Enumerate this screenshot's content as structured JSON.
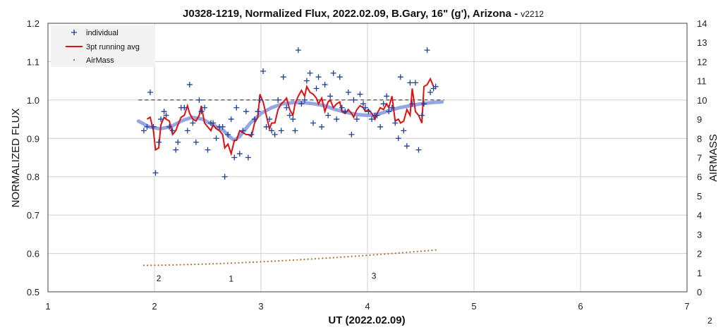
{
  "chart_data": {
    "type": "scatter",
    "title": "J0328-1219, Normalized Flux, 2022.02.09, B.Gary, 16\" (g'), Arizona - ",
    "title_version": "v2212",
    "xlabel": "UT (2022.02.09)",
    "ylabel": "NORMALIZED FLUX",
    "y2label": "AIRMASS",
    "xlim": [
      1,
      7
    ],
    "ylim": [
      0.5,
      1.2
    ],
    "y2lim": [
      0,
      14
    ],
    "x_ticks": [
      "1",
      "2",
      "3",
      "4",
      "5",
      "6",
      "7"
    ],
    "y_ticks": [
      "0.5",
      "0.6",
      "0.7",
      "0.8",
      "0.9",
      "1.0",
      "1.1",
      "1.2"
    ],
    "y2_ticks": [
      "0",
      "1",
      "2",
      "3",
      "4",
      "5",
      "6",
      "7",
      "8",
      "9",
      "10",
      "11",
      "12",
      "13",
      "14"
    ],
    "grid": true,
    "legend_position": "top-left",
    "reference_level": 1.0,
    "annotations": [
      {
        "text": "2",
        "x": 2.04,
        "y": 0.528
      },
      {
        "text": "1",
        "x": 2.72,
        "y": 0.527
      },
      {
        "text": "3",
        "x": 4.06,
        "y": 0.534
      }
    ],
    "corner_note": "2",
    "series": [
      {
        "name": "individual",
        "color": "#1f3f99",
        "marker": "plus",
        "x": [
          1.9,
          1.93,
          1.96,
          1.99,
          2.01,
          2.04,
          2.06,
          2.09,
          2.11,
          2.14,
          2.17,
          2.2,
          2.22,
          2.25,
          2.28,
          2.31,
          2.33,
          2.36,
          2.39,
          2.42,
          2.44,
          2.47,
          2.5,
          2.53,
          2.55,
          2.58,
          2.61,
          2.64,
          2.66,
          2.69,
          2.72,
          2.75,
          2.77,
          2.8,
          2.83,
          2.86,
          2.88,
          2.91,
          2.94,
          2.97,
          2.99,
          3.02,
          3.05,
          3.08,
          3.1,
          3.13,
          3.16,
          3.19,
          3.21,
          3.24,
          3.27,
          3.3,
          3.32,
          3.35,
          3.38,
          3.41,
          3.43,
          3.46,
          3.49,
          3.52,
          3.54,
          3.57,
          3.6,
          3.63,
          3.65,
          3.68,
          3.71,
          3.74,
          3.76,
          3.79,
          3.82,
          3.85,
          3.87,
          3.9,
          3.93,
          3.96,
          3.98,
          4.01,
          4.04,
          4.07,
          4.09,
          4.12,
          4.15,
          4.18,
          4.2,
          4.23,
          4.26,
          4.29,
          4.31,
          4.34,
          4.37,
          4.4,
          4.42,
          4.45,
          4.48,
          4.51,
          4.53,
          4.56,
          4.59,
          4.62,
          4.64
        ],
        "y": [
          0.92,
          0.93,
          1.02,
          0.93,
          0.81,
          0.89,
          0.95,
          0.97,
          0.96,
          0.93,
          0.92,
          0.87,
          0.89,
          0.98,
          0.98,
          0.92,
          1.04,
          0.94,
          0.89,
          1.0,
          0.97,
          0.98,
          0.87,
          0.94,
          0.94,
          0.9,
          0.93,
          0.93,
          0.8,
          0.91,
          0.95,
          0.85,
          0.98,
          0.86,
          0.92,
          0.97,
          0.85,
          0.91,
          0.95,
          0.97,
          1.0,
          1.075,
          0.93,
          0.95,
          0.92,
          0.91,
          1.0,
          0.92,
          1.06,
          0.98,
          0.96,
          0.95,
          0.92,
          1.13,
          0.99,
          1.0,
          1.05,
          1.07,
          0.94,
          1.03,
          1.06,
          0.93,
          1.04,
          0.96,
          1.01,
          1.07,
          0.95,
          1.06,
          0.98,
          0.97,
          1.02,
          0.91,
          1.0,
          0.95,
          1.015,
          0.99,
          0.98,
          0.97,
          0.95,
          0.96,
          0.96,
          0.93,
          0.99,
          1.01,
          0.97,
          0.98,
          0.94,
          0.9,
          1.06,
          0.92,
          0.88,
          1.045,
          0.99,
          1.045,
          0.87,
          0.96,
          0.99,
          1.13,
          1.02,
          1.03,
          1.035
        ]
      },
      {
        "name": "3pt running avg",
        "color": "#dd1111",
        "x": [
          1.93,
          1.96,
          1.99,
          2.01,
          2.04,
          2.06,
          2.09,
          2.11,
          2.14,
          2.17,
          2.2,
          2.22,
          2.25,
          2.28,
          2.31,
          2.33,
          2.36,
          2.39,
          2.42,
          2.44,
          2.47,
          2.5,
          2.53,
          2.55,
          2.58,
          2.61,
          2.64,
          2.66,
          2.69,
          2.72,
          2.75,
          2.77,
          2.8,
          2.83,
          2.86,
          2.88,
          2.91,
          2.94,
          2.97,
          2.99,
          3.02,
          3.05,
          3.08,
          3.1,
          3.13,
          3.16,
          3.19,
          3.21,
          3.24,
          3.27,
          3.3,
          3.32,
          3.35,
          3.38,
          3.41,
          3.43,
          3.46,
          3.49,
          3.52,
          3.54,
          3.57,
          3.6,
          3.63,
          3.65,
          3.68,
          3.71,
          3.74,
          3.76,
          3.79,
          3.82,
          3.85,
          3.87,
          3.9,
          3.93,
          3.96,
          3.98,
          4.01,
          4.04,
          4.07,
          4.09,
          4.12,
          4.15,
          4.18,
          4.2,
          4.23,
          4.26,
          4.29,
          4.31,
          4.34,
          4.37,
          4.4,
          4.42,
          4.45,
          4.48,
          4.51,
          4.53,
          4.56,
          4.59,
          4.62
        ],
        "y": [
          0.95,
          0.955,
          0.92,
          0.87,
          0.875,
          0.935,
          0.955,
          0.95,
          0.945,
          0.91,
          0.92,
          0.935,
          0.955,
          0.96,
          0.985,
          0.965,
          0.95,
          0.945,
          0.96,
          0.985,
          0.94,
          0.93,
          0.92,
          0.935,
          0.925,
          0.92,
          0.91,
          0.875,
          0.885,
          0.86,
          0.895,
          0.895,
          0.92,
          0.915,
          0.91,
          0.91,
          0.905,
          0.94,
          0.955,
          1.015,
          0.995,
          0.96,
          0.925,
          0.94,
          0.94,
          0.975,
          0.99,
          0.995,
          1.005,
          0.975,
          0.96,
          0.99,
          1.01,
          1.025,
          1.01,
          1.035,
          1.02,
          1.015,
          1.005,
          0.99,
          1.005,
          0.97,
          0.995,
          1.0,
          0.98,
          0.99,
          0.995,
          0.97,
          0.965,
          0.975,
          0.965,
          0.955,
          0.975,
          0.985,
          0.98,
          0.97,
          0.975,
          0.965,
          0.95,
          0.965,
          0.98,
          0.975,
          0.99,
          0.98,
          1.01,
          0.945,
          0.95,
          0.94,
          0.945,
          0.975,
          0.96,
          1.03,
          0.97,
          0.96,
          0.94,
          1.035,
          1.04,
          1.055,
          1.035
        ]
      },
      {
        "name": "AirMass",
        "color": "#b0702a",
        "marker": "dot",
        "x_start": 1.9,
        "x_end": 4.64,
        "y2_start": 1.38,
        "y2_end": 2.18
      }
    ],
    "trend": {
      "color": "#8a9ddf",
      "x": [
        1.85,
        1.95,
        2.05,
        2.15,
        2.25,
        2.35,
        2.45,
        2.55,
        2.65,
        2.7,
        2.75,
        2.8,
        2.9,
        3.0,
        3.1,
        3.2,
        3.3,
        3.4,
        3.5,
        3.6,
        3.7,
        3.8,
        3.9,
        4.0,
        4.1,
        4.2,
        4.3,
        4.4,
        4.5,
        4.6,
        4.7
      ],
      "y": [
        0.945,
        0.93,
        0.925,
        0.93,
        0.945,
        0.955,
        0.95,
        0.935,
        0.92,
        0.905,
        0.895,
        0.905,
        0.94,
        0.965,
        0.98,
        0.99,
        0.993,
        0.993,
        0.99,
        0.985,
        0.975,
        0.968,
        0.962,
        0.96,
        0.963,
        0.972,
        0.98,
        0.985,
        0.99,
        0.993,
        0.995
      ]
    }
  }
}
